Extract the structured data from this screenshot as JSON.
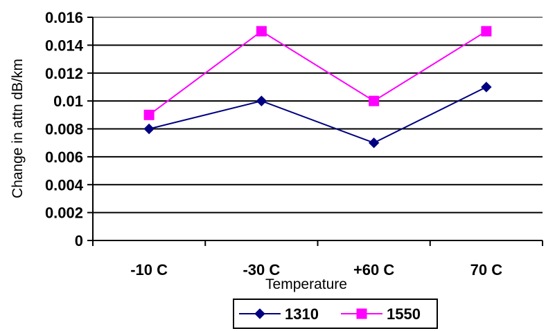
{
  "chart_data": {
    "type": "line",
    "categories": [
      "-10 C",
      "-30 C",
      "+60 C",
      "70 C"
    ],
    "series": [
      {
        "name": "1310",
        "values": [
          0.008,
          0.01,
          0.007,
          0.011
        ],
        "color": "#000080",
        "marker": "diamond"
      },
      {
        "name": "1550",
        "values": [
          0.009,
          0.015,
          0.01,
          0.015
        ],
        "color": "#FF00FF",
        "marker": "square"
      }
    ],
    "xlabel": "Temperature",
    "ylabel": "Change in attn dB/km",
    "ylim": [
      0,
      0.016
    ],
    "yticks": [
      "0",
      "0.002",
      "0.004",
      "0.006",
      "0.008",
      "0.01",
      "0.012",
      "0.014",
      "0.016"
    ],
    "grid": true,
    "legend_position": "bottom"
  }
}
